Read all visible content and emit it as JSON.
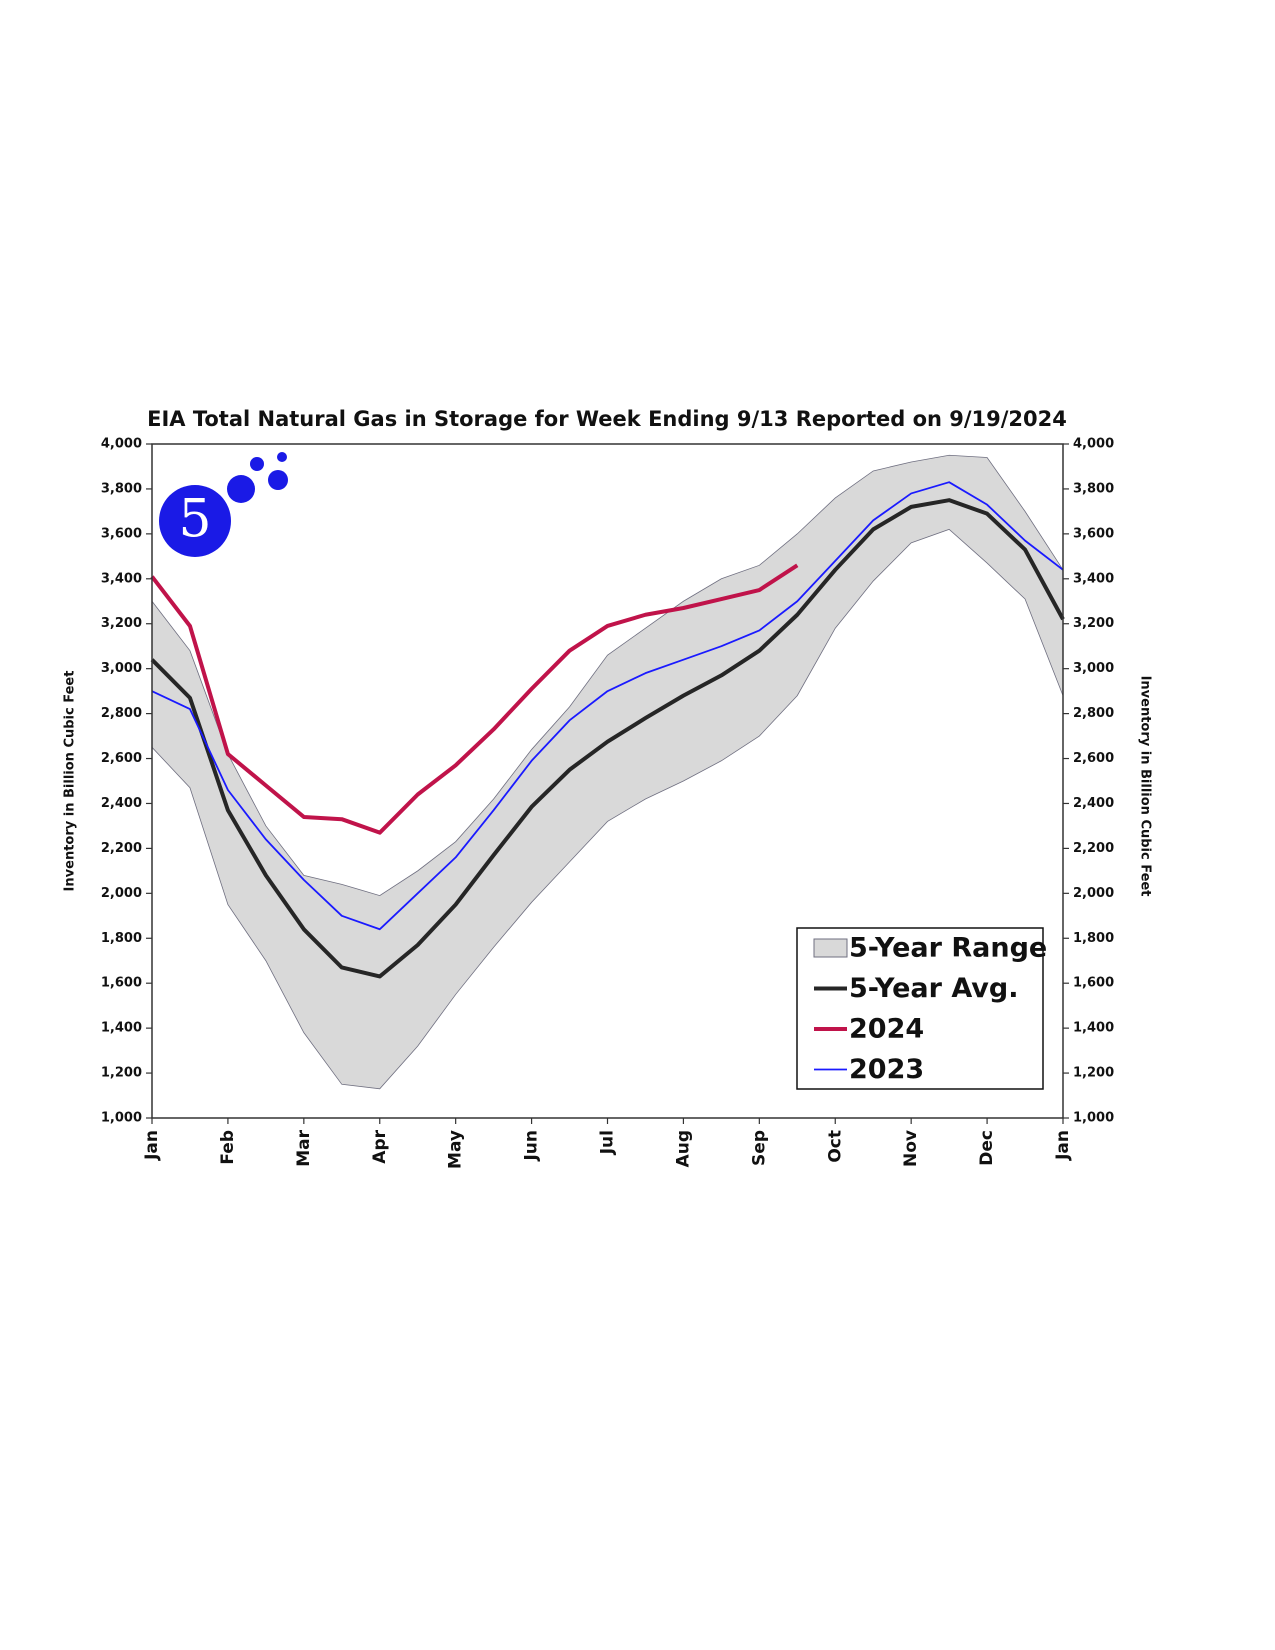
{
  "chart_data": {
    "type": "line",
    "title": "EIA Total Natural Gas in Storage for Week Ending 9/13 Reported on 9/19/2024",
    "y_label": "Inventory in Billion Cubic Feet",
    "y2_label": "Inventory in Billion Cubic Feet",
    "logo": "5",
    "legend": "lower right",
    "x": [
      0,
      0.5,
      1,
      1.5,
      2,
      2.5,
      3,
      3.5,
      4,
      4.5,
      5,
      5.5,
      6,
      6.5,
      7,
      7.5,
      8,
      8.5,
      9,
      9.5,
      10,
      10.5,
      11,
      11.5,
      12
    ],
    "xlim": [
      0,
      12
    ],
    "xticks": [
      {
        "value": 0,
        "label": "Jan"
      },
      {
        "value": 1,
        "label": "Feb"
      },
      {
        "value": 2,
        "label": "Mar"
      },
      {
        "value": 3,
        "label": "Apr"
      },
      {
        "value": 4,
        "label": "May"
      },
      {
        "value": 5,
        "label": "Jun"
      },
      {
        "value": 6,
        "label": "Jul"
      },
      {
        "value": 7,
        "label": "Aug"
      },
      {
        "value": 8,
        "label": "Sep"
      },
      {
        "value": 9,
        "label": "Oct"
      },
      {
        "value": 10,
        "label": "Nov"
      },
      {
        "value": 11,
        "label": "Dec"
      },
      {
        "value": 12,
        "label": "Jan"
      }
    ],
    "ylim": [
      1000,
      4000
    ],
    "yticks": [
      {
        "value": 1000,
        "label": "1,000"
      },
      {
        "value": 1200,
        "label": "1,200"
      },
      {
        "value": 1400,
        "label": "1,400"
      },
      {
        "value": 1600,
        "label": "1,600"
      },
      {
        "value": 1800,
        "label": "1,800"
      },
      {
        "value": 2000,
        "label": "2,000"
      },
      {
        "value": 2200,
        "label": "2,200"
      },
      {
        "value": 2400,
        "label": "2,400"
      },
      {
        "value": 2600,
        "label": "2,600"
      },
      {
        "value": 2800,
        "label": "2,800"
      },
      {
        "value": 3000,
        "label": "3,000"
      },
      {
        "value": 3200,
        "label": "3,200"
      },
      {
        "value": 3400,
        "label": "3,400"
      },
      {
        "value": 3600,
        "label": "3,600"
      },
      {
        "value": 3800,
        "label": "3,800"
      },
      {
        "value": 4000,
        "label": "4,000"
      }
    ],
    "y2lim": [
      1000,
      4000
    ],
    "y2ticks": [
      {
        "value": 1000,
        "label": "1,000"
      },
      {
        "value": 1200,
        "label": "1,200"
      },
      {
        "value": 1400,
        "label": "1,400"
      },
      {
        "value": 1600,
        "label": "1,600"
      },
      {
        "value": 1800,
        "label": "1,800"
      },
      {
        "value": 2000,
        "label": "2,000"
      },
      {
        "value": 2200,
        "label": "2,200"
      },
      {
        "value": 2400,
        "label": "2,400"
      },
      {
        "value": 2600,
        "label": "2,600"
      },
      {
        "value": 2800,
        "label": "2,800"
      },
      {
        "value": 3000,
        "label": "3,000"
      },
      {
        "value": 3200,
        "label": "3,200"
      },
      {
        "value": 3400,
        "label": "3,400"
      },
      {
        "value": 3600,
        "label": "3,600"
      },
      {
        "value": 3800,
        "label": "3,800"
      },
      {
        "value": 4000,
        "label": "4,000"
      }
    ],
    "series": [
      {
        "name": "5-Year Range",
        "type": "area",
        "color": "#d9d9d9",
        "upper": [
          3300,
          3080,
          2620,
          2300,
          2080,
          2040,
          1990,
          2100,
          2230,
          2420,
          2640,
          2830,
          3060,
          3180,
          3300,
          3400,
          3460,
          3600,
          3760,
          3880,
          3920,
          3950,
          3940,
          3700,
          3440
        ],
        "lower": [
          2650,
          2470,
          1950,
          1700,
          1380,
          1150,
          1130,
          1320,
          1550,
          1760,
          1960,
          2140,
          2320,
          2420,
          2500,
          2590,
          2700,
          2880,
          3180,
          3390,
          3560,
          3620,
          3470,
          3310,
          2880
        ]
      },
      {
        "name": "5-Year Avg.",
        "type": "line",
        "color": "#262626",
        "width": 4,
        "values": [
          3040,
          2870,
          2370,
          2080,
          1840,
          1670,
          1630,
          1770,
          1950,
          2170,
          2385,
          2550,
          2675,
          2780,
          2880,
          2970,
          3080,
          3240,
          3440,
          3620,
          3720,
          3750,
          3690,
          3530,
          3220
        ]
      },
      {
        "name": "2024",
        "type": "line",
        "color": "#c0134a",
        "width": 4,
        "values": [
          3410,
          3190,
          2620,
          2480,
          2340,
          2330,
          2270,
          2440,
          2570,
          2730,
          2910,
          3080,
          3190,
          3240,
          3270,
          3310,
          3350,
          3460,
          null,
          null,
          null,
          null,
          null,
          null,
          null
        ]
      },
      {
        "name": "2023",
        "type": "line",
        "color": "#1a1aff",
        "width": 1.8,
        "values": [
          2900,
          2820,
          2460,
          2240,
          2060,
          1900,
          1840,
          2000,
          2160,
          2370,
          2590,
          2770,
          2900,
          2980,
          3040,
          3100,
          3170,
          3300,
          3480,
          3660,
          3780,
          3830,
          3730,
          3570,
          3440
        ]
      }
    ]
  }
}
